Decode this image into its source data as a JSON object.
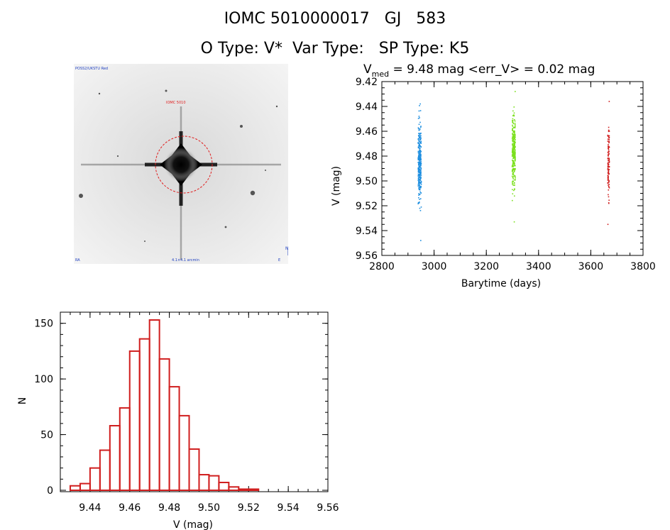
{
  "header": {
    "line1": "IOMC 5010000017   GJ   583",
    "line2": "O Type: V*  Var Type:   SP Type: K5"
  },
  "colors": {
    "season1": "#1e8fe0",
    "season2": "#7be01e",
    "season3": "#d01e1e",
    "histogram": "#d01e1e",
    "aperture": "#e01e1e"
  },
  "sky_image": {
    "description_icon": "dss-star-field-icon",
    "label_top_left": "POSS2/UKSTU Red",
    "label_target": "IOMC 5010",
    "label_bottom_left": "RA",
    "label_bottom_center": "4.1×4.1 arcmin",
    "label_bottom_right": "E",
    "label_north": "N"
  },
  "chart_data": [
    {
      "type": "scatter",
      "title_prefix": "V",
      "title_subscript": "med",
      "title_suffix": " = 9.48 mag <err_V> = 0.02 mag",
      "xlabel": "Barytime (days)",
      "ylabel": "V (mag)",
      "xlim": [
        2800,
        3800
      ],
      "ylim": [
        9.56,
        9.42
      ],
      "x_ticks": [
        "2800",
        "3000",
        "3200",
        "3400",
        "3600",
        "3800"
      ],
      "y_ticks": [
        "9.42",
        "9.44",
        "9.46",
        "9.48",
        "9.50",
        "9.52",
        "9.54",
        "9.56"
      ],
      "series": [
        {
          "name": "season1",
          "x_center": 2945,
          "x_spread": 6,
          "ymin": 9.438,
          "ymax": 9.548,
          "ymean": 9.485,
          "n": 300
        },
        {
          "name": "season2",
          "x_center": 3305,
          "x_spread": 6,
          "ymin": 9.428,
          "ymax": 9.533,
          "ymean": 9.475,
          "n": 300
        },
        {
          "name": "season3",
          "x_center": 3668,
          "x_spread": 3,
          "ymin": 9.436,
          "ymax": 9.535,
          "ymean": 9.485,
          "n": 110
        }
      ]
    },
    {
      "type": "bar",
      "subtype": "histogram",
      "xlabel": "V (mag)",
      "ylabel": "N",
      "xlim": [
        9.425,
        9.56
      ],
      "ylim": [
        0,
        160
      ],
      "x_ticks": [
        "9.44",
        "9.46",
        "9.48",
        "9.50",
        "9.52",
        "9.54",
        "9.56"
      ],
      "y_ticks": [
        "0",
        "50",
        "100",
        "150"
      ],
      "bin_width": 0.005,
      "bin_edges_start": 9.43,
      "values": [
        4,
        6,
        20,
        36,
        58,
        74,
        125,
        136,
        153,
        118,
        93,
        67,
        37,
        14,
        13,
        7,
        3,
        1,
        1
      ]
    }
  ]
}
